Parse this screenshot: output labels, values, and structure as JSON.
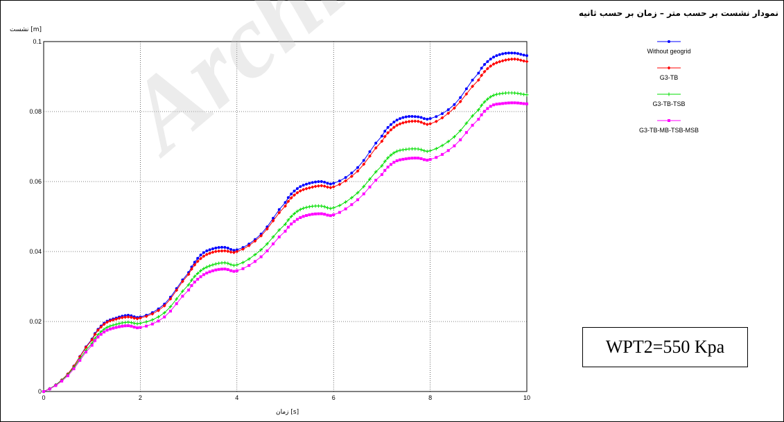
{
  "title": "نمودار نشست بر حسب متر – زمان بر حسب ثانیه",
  "ylabel": "نشست [m]",
  "xlabel": "زمان [s]",
  "annotation": "WPT2=550 Kpa",
  "watermark": "Archive",
  "chart_data": {
    "type": "line",
    "xlim": [
      0,
      10
    ],
    "ylim": [
      0,
      0.1
    ],
    "xticks": [
      "0",
      "2",
      "4",
      "6",
      "8",
      "10"
    ],
    "yticks": [
      "0",
      "0.02",
      "0.04",
      "0.06",
      "0.08",
      "0.1"
    ],
    "grid": true,
    "legend_position": "top-right",
    "x": [
      0,
      0.5,
      1,
      1.25,
      1.5,
      1.75,
      2,
      2.5,
      3,
      3.25,
      3.5,
      3.75,
      4,
      4.5,
      5,
      5.25,
      5.5,
      5.75,
      6,
      6.5,
      7,
      7.25,
      7.5,
      7.75,
      8,
      8.5,
      9,
      9.25,
      9.5,
      9.75,
      10
    ],
    "series": [
      {
        "name": "Without geogrid",
        "color": "#0000ff",
        "marker": "circle",
        "values": [
          0,
          0.005,
          0.015,
          0.0195,
          0.021,
          0.0218,
          0.0213,
          0.025,
          0.034,
          0.039,
          0.0408,
          0.0412,
          0.0405,
          0.045,
          0.054,
          0.058,
          0.0595,
          0.06,
          0.0595,
          0.064,
          0.073,
          0.077,
          0.0785,
          0.0785,
          0.078,
          0.082,
          0.091,
          0.095,
          0.0965,
          0.0967,
          0.096
        ]
      },
      {
        "name": "G3-TB",
        "color": "#ff0000",
        "marker": "diamond",
        "values": [
          0,
          0.005,
          0.0148,
          0.0192,
          0.0207,
          0.0213,
          0.021,
          0.0245,
          0.0335,
          0.038,
          0.0398,
          0.0402,
          0.04,
          0.0445,
          0.053,
          0.0568,
          0.0582,
          0.0588,
          0.0585,
          0.063,
          0.0715,
          0.0755,
          0.077,
          0.0772,
          0.0765,
          0.081,
          0.089,
          0.093,
          0.0945,
          0.095,
          0.0943
        ]
      },
      {
        "name": "G3-TB-TSB",
        "color": "#00dd00",
        "marker": "plus",
        "values": [
          0,
          0.0048,
          0.0138,
          0.0178,
          0.0192,
          0.0198,
          0.0195,
          0.0225,
          0.0305,
          0.0345,
          0.0362,
          0.0368,
          0.0362,
          0.0405,
          0.0478,
          0.0515,
          0.0528,
          0.053,
          0.0525,
          0.0568,
          0.0645,
          0.0682,
          0.0692,
          0.0693,
          0.0688,
          0.0728,
          0.0805,
          0.0842,
          0.0852,
          0.0853,
          0.0848
        ]
      },
      {
        "name": "G3-TB-MB-TSB-MSB",
        "color": "#ff00ff",
        "marker": "square",
        "values": [
          0,
          0.0045,
          0.0132,
          0.017,
          0.0183,
          0.0188,
          0.0183,
          0.0213,
          0.029,
          0.0328,
          0.0345,
          0.035,
          0.0345,
          0.0385,
          0.0458,
          0.0492,
          0.0505,
          0.0508,
          0.0505,
          0.0548,
          0.062,
          0.0655,
          0.0665,
          0.0667,
          0.0663,
          0.0702,
          0.0778,
          0.0815,
          0.0823,
          0.0825,
          0.0822
        ]
      }
    ]
  }
}
